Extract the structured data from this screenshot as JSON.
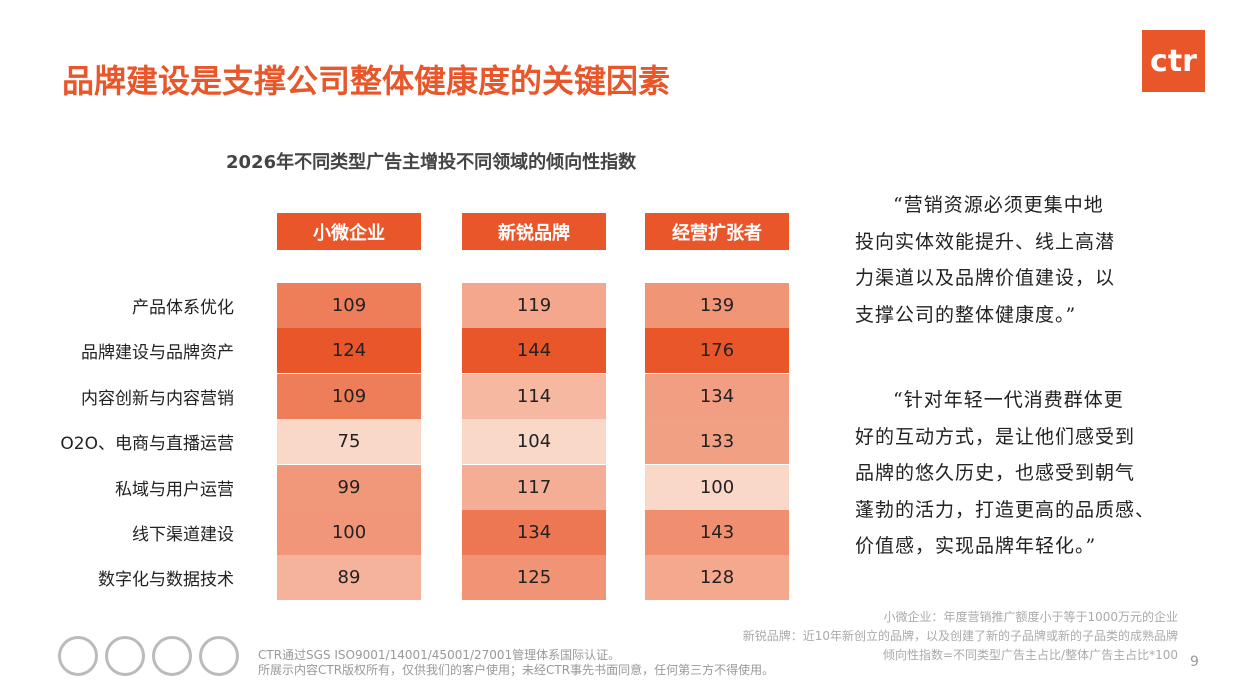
{
  "header": {
    "title": "品牌建设是支撑公司整体健康度的关键因素",
    "logo": "ctr"
  },
  "table": {
    "title": "2026年不同类型广告主增投不同领域的倾向性指数",
    "columns": [
      "小微企业",
      "新锐品牌",
      "经营扩张者"
    ],
    "rows": [
      {
        "label": "产品体系优化",
        "values": [
          109,
          119,
          139
        ]
      },
      {
        "label": "品牌建设与品牌资产",
        "values": [
          124,
          144,
          176
        ]
      },
      {
        "label": "内容创新与内容营销",
        "values": [
          109,
          114,
          134
        ]
      },
      {
        "label": "O2O、电商与直播运营",
        "values": [
          75,
          104,
          133
        ]
      },
      {
        "label": "私域与用户运营",
        "values": [
          99,
          117,
          100
        ]
      },
      {
        "label": "线下渠道建设",
        "values": [
          100,
          134,
          143
        ]
      },
      {
        "label": "数字化与数据技术",
        "values": [
          89,
          125,
          128
        ]
      }
    ]
  },
  "quotes": [
    [
      "“营销资源必须更集中地",
      "投向实体效能提升、线上高潜",
      "力渠道以及品牌价值建设，以",
      "支撑公司的整体健康度。”"
    ],
    [
      "“针对年轻一代消费群体更",
      "好的互动方式，是让他们感受到",
      "品牌的悠久历史，也感受到朝气",
      "蓬勃的活力，打造更高的品质感、",
      "价值感，实现品牌年轻化。”"
    ]
  ],
  "notes": [
    "小微企业：年度营销推广额度小于等于1000万元的企业",
    "新锐品牌：近10年新创立的品牌，以及创建了新的子品牌或新的子品类的成熟品牌",
    "倾向性指数=不同类型广告主占比/整体广告主占比*100"
  ],
  "footer": {
    "lines": [
      "CTR通过SGS ISO9001/14001/45001/27001管理体系国际认证。",
      "所展示内容CTR版权所有，仅供我们的客户使用；未经CTR事先书面同意，任何第三方不得使用。"
    ],
    "page": "9"
  }
}
